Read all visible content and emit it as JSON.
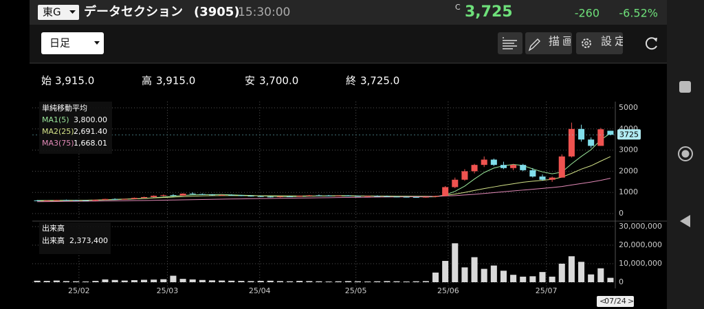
{
  "header": {
    "market": "東G",
    "name": "データセクション",
    "code": "(3905)",
    "time": "15:30:00",
    "flag": "C",
    "price": "3,725",
    "change": "-260",
    "change_pct": "-6.52%"
  },
  "toolbar": {
    "period": "日足",
    "draw": "描画",
    "settings": "設定"
  },
  "ohlc": {
    "open_label": "始",
    "open": "3,915.0",
    "high_label": "高",
    "high": "3,915.0",
    "low_label": "安",
    "low": "3,700.0",
    "close_label": "終",
    "close": "3,725.0"
  },
  "chart_data": {
    "type": "candlestick",
    "ylim": [
      0,
      5000
    ],
    "yticks": [
      0,
      1000,
      2000,
      3000,
      4000,
      5000
    ],
    "xlim": [
      0,
      60
    ],
    "xticks": [
      {
        "value": 4.3,
        "label": "25/02"
      },
      {
        "value": 13.4,
        "label": "25/03"
      },
      {
        "value": 22.9,
        "label": "25/04"
      },
      {
        "value": 32.8,
        "label": "25/05"
      },
      {
        "value": 42.3,
        "label": "25/06"
      },
      {
        "value": 52.4,
        "label": "25/07"
      }
    ],
    "up_color": "#ef5350",
    "down_color": "#80deea",
    "grid": true,
    "candles": [
      [
        620,
        640,
        600,
        610
      ],
      [
        610,
        630,
        590,
        620
      ],
      [
        620,
        650,
        610,
        640
      ],
      [
        640,
        660,
        620,
        630
      ],
      [
        630,
        650,
        610,
        625
      ],
      [
        625,
        640,
        600,
        610
      ],
      [
        610,
        660,
        600,
        650
      ],
      [
        650,
        700,
        640,
        690
      ],
      [
        690,
        720,
        660,
        670
      ],
      [
        670,
        700,
        650,
        690
      ],
      [
        690,
        760,
        680,
        740
      ],
      [
        740,
        800,
        720,
        780
      ],
      [
        780,
        860,
        760,
        840
      ],
      [
        840,
        900,
        810,
        870
      ],
      [
        870,
        920,
        830,
        850
      ],
      [
        850,
        960,
        840,
        940
      ],
      [
        940,
        1000,
        900,
        920
      ],
      [
        920,
        950,
        880,
        900
      ],
      [
        900,
        920,
        850,
        870
      ],
      [
        870,
        900,
        840,
        880
      ],
      [
        880,
        910,
        850,
        860
      ],
      [
        860,
        880,
        820,
        840
      ],
      [
        840,
        870,
        800,
        820
      ],
      [
        820,
        850,
        780,
        800
      ],
      [
        800,
        830,
        760,
        780
      ],
      [
        780,
        820,
        760,
        810
      ],
      [
        810,
        840,
        790,
        800
      ],
      [
        800,
        850,
        790,
        840
      ],
      [
        840,
        880,
        820,
        860
      ],
      [
        860,
        900,
        840,
        850
      ],
      [
        850,
        880,
        820,
        830
      ],
      [
        830,
        860,
        810,
        850
      ],
      [
        850,
        870,
        820,
        830
      ],
      [
        830,
        850,
        800,
        810
      ],
      [
        810,
        840,
        790,
        830
      ],
      [
        830,
        860,
        800,
        820
      ],
      [
        820,
        850,
        790,
        800
      ],
      [
        800,
        820,
        770,
        790
      ],
      [
        790,
        810,
        760,
        780
      ],
      [
        780,
        800,
        750,
        770
      ],
      [
        770,
        800,
        750,
        790
      ],
      [
        790,
        840,
        770,
        830
      ],
      [
        830,
        1300,
        820,
        1250
      ],
      [
        1250,
        1700,
        1200,
        1600
      ],
      [
        1600,
        2100,
        1550,
        2000
      ],
      [
        2000,
        2350,
        1900,
        2300
      ],
      [
        2300,
        2700,
        2200,
        2550
      ],
      [
        2550,
        2600,
        2250,
        2300
      ],
      [
        2300,
        2450,
        2100,
        2150
      ],
      [
        2150,
        2350,
        2050,
        2300
      ],
      [
        2300,
        2350,
        2000,
        2050
      ],
      [
        2050,
        2150,
        1700,
        1750
      ],
      [
        1750,
        1850,
        1550,
        1600
      ],
      [
        1600,
        1750,
        1500,
        1700
      ],
      [
        1700,
        2800,
        1700,
        2700
      ],
      [
        2700,
        4300,
        2650,
        4000
      ],
      [
        4000,
        4200,
        3400,
        3500
      ],
      [
        3500,
        3600,
        3100,
        3200
      ],
      [
        3200,
        4050,
        3200,
        3985
      ],
      [
        3915,
        3915,
        3700,
        3725
      ]
    ],
    "last_price": 3725,
    "last_date": "07/24",
    "ma_title": "単純移動平均",
    "series": [
      {
        "name": "MA1(5)",
        "color": "#9be89b",
        "label": "3,800.00",
        "values": [
          620,
          622,
          625,
          628,
          625,
          627,
          635,
          649,
          657,
          672,
          688,
          716,
          746,
          784,
          817,
          857,
          884,
          896,
          896,
          902,
          886,
          870,
          856,
          840,
          820,
          810,
          802,
          806,
          818,
          832,
          836,
          848,
          844,
          834,
          830,
          828,
          818,
          810,
          804,
          792,
          786,
          791,
          880,
          1048,
          1296,
          1634,
          1940,
          2150,
          2260,
          2322,
          2272,
          2110,
          1970,
          1880,
          1960,
          2350,
          2700,
          3020,
          3478,
          3800
        ]
      },
      {
        "name": "MA2(25)",
        "color": "#d6e58a",
        "label": "2,691.40",
        "values": [
          600,
          605,
          610,
          615,
          622,
          630,
          640,
          655,
          670,
          685,
          700,
          720,
          740,
          760,
          780,
          800,
          820,
          835,
          845,
          848,
          847,
          845,
          843,
          841,
          839,
          837,
          835,
          834,
          833,
          832,
          831,
          830,
          829,
          828,
          826,
          824,
          822,
          820,
          818,
          816,
          814,
          812,
          860,
          920,
          1000,
          1090,
          1180,
          1260,
          1340,
          1410,
          1480,
          1530,
          1570,
          1620,
          1720,
          1900,
          2100,
          2260,
          2480,
          2691.4
        ]
      },
      {
        "name": "MA3(75)",
        "color": "#e38ab8",
        "label": "1,668.01",
        "values": [
          560,
          565,
          570,
          575,
          580,
          585,
          590,
          595,
          600,
          606,
          612,
          618,
          625,
          632,
          640,
          648,
          656,
          664,
          672,
          680,
          688,
          695,
          702,
          709,
          716,
          722,
          728,
          734,
          740,
          746,
          752,
          758,
          763,
          768,
          773,
          778,
          783,
          788,
          792,
          796,
          800,
          815,
          830,
          850,
          880,
          910,
          950,
          990,
          1030,
          1070,
          1110,
          1150,
          1190,
          1230,
          1280,
          1350,
          1420,
          1490,
          1570,
          1668.01
        ]
      }
    ],
    "volume": {
      "title": "出来高",
      "name": "出来高",
      "latest_label": "2,373,400",
      "color": "#d9d9d9",
      "ylim": [
        0,
        30000000
      ],
      "yticks": [
        0,
        {
          "value": 10000000,
          "label": "10,000,000"
        },
        {
          "value": 20000000,
          "label": "20,000,000"
        },
        {
          "value": 30000000,
          "label": "30,000,000"
        }
      ],
      "values": [
        800000,
        700000,
        900000,
        600000,
        500000,
        400000,
        700000,
        1500000,
        1200000,
        900000,
        1100000,
        1300000,
        1400000,
        1600000,
        3500000,
        1800000,
        1500000,
        1200000,
        1000000,
        900000,
        800000,
        700000,
        600000,
        700000,
        800000,
        600000,
        500000,
        700000,
        600000,
        500000,
        400000,
        500000,
        600000,
        500000,
        400000,
        500000,
        600000,
        500000,
        400000,
        500000,
        600000,
        5200000,
        11500000,
        21000000,
        8000000,
        13500000,
        7200000,
        9000000,
        6200000,
        4000000,
        3000000,
        3200000,
        5500000,
        3000000,
        10000000,
        14000000,
        11000000,
        4200000,
        7500000,
        2373400
      ]
    }
  }
}
